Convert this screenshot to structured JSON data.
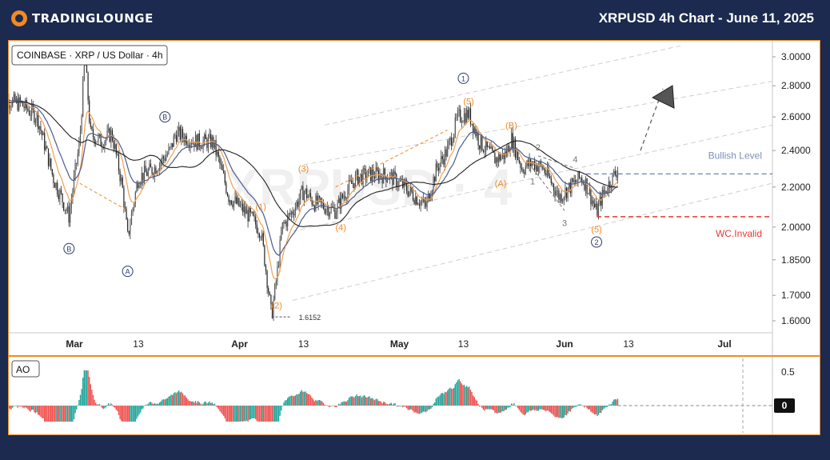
{
  "header": {
    "brand_prefix": "TRADING",
    "brand_suffix": "LOUNGE",
    "title": "XRPUSD 4h Chart - June 11, 2025",
    "logo_icon": "tradinglounge-logo-icon"
  },
  "legend": {
    "symbol": "COINBASE · XRP / US Dollar · 4h"
  },
  "watermark": "XRPUSD · 4",
  "indicator": {
    "label": "AO",
    "ticks": [
      "0.5",
      "0"
    ]
  },
  "colors": {
    "accent": "#f08a24",
    "bullish_level": "#7f8fb8",
    "invalid_level": "#e53935",
    "ao_up": "#26a69a",
    "ao_down": "#ef5350",
    "ma_fast": "#f0a050",
    "ma_mid": "#4a5c90",
    "ma_slow": "#202020"
  },
  "chart_data": {
    "type": "candlestick",
    "title": "XRPUSD 4h Chart - June 11, 2025",
    "xlabel": "",
    "ylabel": "",
    "ylim": [
      1.58,
      3.1
    ],
    "y_scale": "log",
    "y_ticks": [
      3.0,
      2.8,
      2.6,
      2.4,
      2.2,
      2.0,
      1.85,
      1.7,
      1.6
    ],
    "y_tick_labels": [
      "3.0000",
      "2.8000",
      "2.6000",
      "2.4000",
      "2.2000",
      "2.0000",
      "1.8500",
      "1.7000",
      "1.6000"
    ],
    "x_axis_labels": [
      "Mar",
      "13",
      "Apr",
      "13",
      "May",
      "13",
      "Jun",
      "13",
      "Jul"
    ],
    "price_path": [
      [
        "2025-02-15",
        2.72
      ],
      [
        "2025-02-19",
        2.68
      ],
      [
        "2025-02-22",
        2.6
      ],
      [
        "2025-02-25",
        2.25
      ],
      [
        "2025-02-28",
        2.05
      ],
      [
        "2025-03-02",
        2.45
      ],
      [
        "2025-03-03",
        3.0
      ],
      [
        "2025-03-04",
        2.5
      ],
      [
        "2025-03-06",
        2.45
      ],
      [
        "2025-03-08",
        2.5
      ],
      [
        "2025-03-10",
        2.2
      ],
      [
        "2025-03-11",
        1.95
      ],
      [
        "2025-03-13",
        2.25
      ],
      [
        "2025-03-16",
        2.3
      ],
      [
        "2025-03-19",
        2.4
      ],
      [
        "2025-03-20",
        2.5
      ],
      [
        "2025-03-24",
        2.45
      ],
      [
        "2025-03-27",
        2.45
      ],
      [
        "2025-03-30",
        2.15
      ],
      [
        "2025-04-01",
        2.1
      ],
      [
        "2025-04-03",
        2.05
      ],
      [
        "2025-04-05",
        1.98
      ],
      [
        "2025-04-07",
        1.615
      ],
      [
        "2025-04-08",
        1.78
      ],
      [
        "2025-04-09",
        2.0
      ],
      [
        "2025-04-11",
        2.08
      ],
      [
        "2025-04-13",
        2.18
      ],
      [
        "2025-04-15",
        2.12
      ],
      [
        "2025-04-19",
        2.08
      ],
      [
        "2025-04-21",
        2.18
      ],
      [
        "2025-04-23",
        2.25
      ],
      [
        "2025-04-26",
        2.27
      ],
      [
        "2025-04-29",
        2.26
      ],
      [
        "2025-05-02",
        2.2
      ],
      [
        "2025-05-06",
        2.1
      ],
      [
        "2025-05-08",
        2.3
      ],
      [
        "2025-05-10",
        2.4
      ],
      [
        "2025-05-12",
        2.6
      ],
      [
        "2025-05-14",
        2.62
      ],
      [
        "2025-05-16",
        2.45
      ],
      [
        "2025-05-19",
        2.35
      ],
      [
        "2025-05-21",
        2.38
      ],
      [
        "2025-05-22",
        2.47
      ],
      [
        "2025-05-24",
        2.3
      ],
      [
        "2025-05-26",
        2.33
      ],
      [
        "2025-05-28",
        2.3
      ],
      [
        "2025-05-31",
        2.15
      ],
      [
        "2025-06-02",
        2.2
      ],
      [
        "2025-06-04",
        2.25
      ],
      [
        "2025-06-05",
        2.22
      ],
      [
        "2025-06-07",
        2.07
      ],
      [
        "2025-06-08",
        2.15
      ],
      [
        "2025-06-10",
        2.25
      ],
      [
        "2025-06-11",
        2.3
      ]
    ],
    "price_label": "1.6152",
    "horizontal_levels": [
      {
        "name": "Bullish Level",
        "value": 2.27,
        "color": "#7f8fb8"
      },
      {
        "name": "WC.Invalid",
        "value": 2.05,
        "color": "#e53935"
      }
    ],
    "wave_labels": [
      {
        "text": "B",
        "date": "2025-02-28",
        "price": 1.9,
        "style": "circle-navy"
      },
      {
        "text": "B",
        "date": "2025-03-18",
        "price": 2.6,
        "style": "circle-navy"
      },
      {
        "text": "A",
        "date": "2025-03-11",
        "price": 1.8,
        "style": "circle-navy"
      },
      {
        "text": "(1)",
        "date": "2025-04-05",
        "price": 2.1,
        "style": "orange"
      },
      {
        "text": "(2)",
        "date": "2025-04-08",
        "price": 1.66,
        "style": "orange"
      },
      {
        "text": "(3)",
        "date": "2025-04-13",
        "price": 2.3,
        "style": "orange"
      },
      {
        "text": "(4)",
        "date": "2025-04-20",
        "price": 2.0,
        "style": "orange"
      },
      {
        "text": "(5)",
        "date": "2025-05-14",
        "price": 2.7,
        "style": "orange"
      },
      {
        "text": "1",
        "date": "2025-05-13",
        "price": 2.85,
        "style": "circle-navy"
      },
      {
        "text": "(A)",
        "date": "2025-05-20",
        "price": 2.22,
        "style": "orange"
      },
      {
        "text": "(B)",
        "date": "2025-05-22",
        "price": 2.55,
        "style": "orange"
      },
      {
        "text": "1",
        "date": "2025-05-26",
        "price": 2.23,
        "style": "gray"
      },
      {
        "text": "2",
        "date": "2025-05-27",
        "price": 2.42,
        "style": "gray"
      },
      {
        "text": "3",
        "date": "2025-06-01",
        "price": 2.02,
        "style": "gray"
      },
      {
        "text": "4",
        "date": "2025-06-03",
        "price": 2.35,
        "style": "gray"
      },
      {
        "text": "(5)",
        "date": "2025-06-07",
        "price": 1.99,
        "style": "orange"
      },
      {
        "text": "2",
        "date": "2025-06-07",
        "price": 1.93,
        "style": "circle-navy"
      }
    ]
  }
}
